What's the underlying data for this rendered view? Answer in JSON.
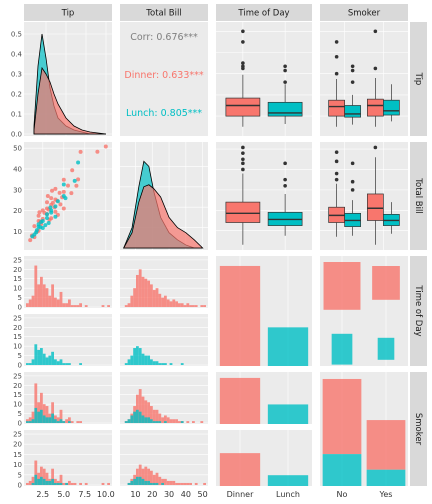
{
  "colors": {
    "panel_bg": "#ebebeb",
    "grid": "#ffffff",
    "strip_bg": "#d9d9d9",
    "dinner": "#f8766d",
    "lunch": "#00bfc4",
    "corr_text": "#7f7f7f"
  },
  "columns": [
    "Tip",
    "Total Bill",
    "Time of Day",
    "Smoker"
  ],
  "rows": [
    "Tip",
    "Total Bill",
    "Time of Day",
    "Smoker"
  ],
  "chart_data": {
    "type": "scatter",
    "layout": "pairs-matrix",
    "groups": [
      "Dinner",
      "Lunch"
    ],
    "correlations": {
      "overall": {
        "label": "Corr: 0.676***"
      },
      "by_group": [
        {
          "group": "Dinner",
          "label": "Dinner: 0.633***"
        },
        {
          "group": "Lunch",
          "label": "Lunch: 0.805***"
        }
      ]
    },
    "axes": {
      "tip_ticks": [
        "0.0",
        "0.1",
        "0.2",
        "0.3",
        "0.4",
        "0.5"
      ],
      "total_bill_ticks": [
        "10",
        "20",
        "30",
        "40",
        "50"
      ],
      "count_ticks": [
        "0",
        "5",
        "10",
        "15",
        "20",
        "25"
      ],
      "tip_x_ticks": [
        "2.5",
        "5.0",
        "7.5",
        "10.0"
      ],
      "total_bill_x_ticks": [
        "10",
        "20",
        "30",
        "40",
        "50"
      ],
      "time_categories": [
        "Dinner",
        "Lunch"
      ],
      "smoker_categories": [
        "No",
        "Yes"
      ]
    },
    "density_tip": {
      "x": [
        1.0,
        1.5,
        2.0,
        2.5,
        3.0,
        3.5,
        4.0,
        5.0,
        6.0,
        7.0,
        8.0,
        10.0
      ],
      "dinner": [
        0.02,
        0.2,
        0.33,
        0.3,
        0.26,
        0.2,
        0.15,
        0.08,
        0.04,
        0.02,
        0.01,
        0.0
      ],
      "lunch": [
        0.04,
        0.34,
        0.5,
        0.38,
        0.23,
        0.14,
        0.08,
        0.04,
        0.02,
        0.01,
        0.0,
        0.0
      ]
    },
    "density_total_bill": {
      "x": [
        3,
        8,
        12,
        15,
        18,
        21,
        25,
        30,
        35,
        40,
        45,
        50
      ],
      "dinner": [
        0.0,
        0.015,
        0.045,
        0.06,
        0.062,
        0.058,
        0.05,
        0.03,
        0.02,
        0.015,
        0.008,
        0.0
      ],
      "lunch": [
        0.0,
        0.02,
        0.06,
        0.085,
        0.08,
        0.055,
        0.03,
        0.015,
        0.008,
        0.003,
        0.0,
        0.0
      ]
    },
    "box_tip_by_time": [
      {
        "group": "Dinner",
        "min": 1.0,
        "q1": 2.0,
        "median": 3.0,
        "q3": 3.7,
        "max": 5.9,
        "outliers": [
          6.5,
          6.7,
          7.0,
          9.0,
          10.0
        ]
      },
      {
        "group": "Lunch",
        "min": 1.25,
        "q1": 2.0,
        "median": 2.3,
        "q3": 3.3,
        "max": 5.0,
        "outliers": [
          5.2,
          6.3,
          6.7
        ]
      }
    ],
    "box_tip_by_smoker": [
      {
        "smoker": "No",
        "group": "Dinner",
        "min": 1.0,
        "q1": 2.0,
        "median": 2.9,
        "q3": 3.5,
        "max": 5.5,
        "outliers": [
          6.0,
          7.6,
          9.0
        ]
      },
      {
        "smoker": "No",
        "group": "Lunch",
        "min": 1.2,
        "q1": 1.9,
        "median": 2.2,
        "q3": 3.0,
        "max": 4.0,
        "outliers": [
          5.2,
          6.3,
          6.7
        ]
      },
      {
        "smoker": "Yes",
        "group": "Dinner",
        "min": 1.0,
        "q1": 2.0,
        "median": 3.0,
        "q3": 3.6,
        "max": 5.6,
        "outliers": [
          6.5,
          10.0
        ]
      },
      {
        "smoker": "Yes",
        "group": "Lunch",
        "min": 1.5,
        "q1": 2.1,
        "median": 2.5,
        "q3": 3.5,
        "max": 5.0,
        "outliers": []
      }
    ],
    "box_bill_by_time": [
      {
        "group": "Dinner",
        "min": 3.1,
        "q1": 14.0,
        "median": 18.5,
        "q3": 24.0,
        "max": 38.0,
        "outliers": [
          40.0,
          43.0,
          45.0,
          48.0,
          50.8
        ]
      },
      {
        "group": "Lunch",
        "min": 7.5,
        "q1": 12.5,
        "median": 15.5,
        "q3": 19.0,
        "max": 28.0,
        "outliers": [
          32.0,
          35.0,
          43.0
        ]
      }
    ],
    "box_bill_by_smoker": [
      {
        "smoker": "No",
        "group": "Dinner",
        "min": 7.0,
        "q1": 14.0,
        "median": 17.5,
        "q3": 21.5,
        "max": 33.0,
        "outliers": [
          35.0,
          38.0,
          44.0,
          48.5
        ]
      },
      {
        "smoker": "No",
        "group": "Lunch",
        "min": 7.5,
        "q1": 12.0,
        "median": 15.0,
        "q3": 18.5,
        "max": 25.0,
        "outliers": [
          30.0,
          34.0,
          43.0
        ]
      },
      {
        "smoker": "Yes",
        "group": "Dinner",
        "min": 3.1,
        "q1": 15.0,
        "median": 21.0,
        "q3": 28.0,
        "max": 46.0,
        "outliers": [
          50.8
        ]
      },
      {
        "smoker": "Yes",
        "group": "Lunch",
        "min": 8.5,
        "q1": 12.5,
        "median": 15.0,
        "q3": 18.0,
        "max": 24.0,
        "outliers": []
      }
    ],
    "scatter_points": {
      "dinner": [
        [
          1.0,
          5.8
        ],
        [
          1.5,
          7.2
        ],
        [
          2.0,
          10.3
        ],
        [
          2.0,
          15.0
        ],
        [
          2.0,
          17.5
        ],
        [
          2.2,
          14.8
        ],
        [
          2.5,
          16.0
        ],
        [
          2.5,
          20.1
        ],
        [
          3.0,
          18.3
        ],
        [
          3.0,
          21.0
        ],
        [
          3.0,
          24.0
        ],
        [
          3.2,
          20.5
        ],
        [
          3.5,
          16.3
        ],
        [
          3.5,
          22.8
        ],
        [
          3.5,
          26.0
        ],
        [
          3.7,
          23.7
        ],
        [
          4.0,
          19.4
        ],
        [
          4.0,
          25.3
        ],
        [
          4.0,
          30.4
        ],
        [
          4.2,
          24.8
        ],
        [
          4.5,
          28.5
        ],
        [
          5.0,
          21.0
        ],
        [
          5.0,
          29.0
        ],
        [
          5.0,
          34.8
        ],
        [
          5.5,
          32.0
        ],
        [
          5.9,
          28.4
        ],
        [
          6.0,
          39.4
        ],
        [
          6.5,
          31.9
        ],
        [
          6.7,
          35.0
        ],
        [
          7.0,
          48.2
        ],
        [
          9.0,
          48.3
        ],
        [
          10.0,
          50.8
        ],
        [
          1.5,
          12.5
        ],
        [
          1.8,
          9.8
        ],
        [
          2.3,
          13.5
        ],
        [
          2.7,
          18.9
        ],
        [
          3.3,
          15.5
        ],
        [
          3.9,
          21.6
        ],
        [
          4.3,
          17.9
        ],
        [
          4.8,
          26.4
        ],
        [
          1.2,
          8.0
        ],
        [
          2.1,
          19.2
        ],
        [
          3.1,
          27.0
        ],
        [
          3.6,
          29.5
        ],
        [
          4.6,
          23.0
        ]
      ],
      "lunch": [
        [
          1.25,
          7.6
        ],
        [
          1.5,
          8.5
        ],
        [
          1.8,
          10.6
        ],
        [
          2.0,
          12.2
        ],
        [
          2.0,
          13.4
        ],
        [
          2.2,
          12.0
        ],
        [
          2.3,
          14.5
        ],
        [
          2.5,
          15.0
        ],
        [
          2.5,
          11.6
        ],
        [
          3.0,
          16.4
        ],
        [
          3.0,
          18.2
        ],
        [
          3.2,
          14.0
        ],
        [
          3.5,
          20.0
        ],
        [
          3.5,
          19.0
        ],
        [
          4.0,
          22.0
        ],
        [
          4.0,
          17.0
        ],
        [
          4.3,
          24.5
        ],
        [
          5.0,
          27.0
        ],
        [
          5.0,
          32.5
        ],
        [
          5.2,
          26.0
        ],
        [
          6.3,
          34.3
        ],
        [
          6.7,
          43.1
        ],
        [
          1.7,
          9.5
        ],
        [
          2.8,
          13.0
        ],
        [
          3.4,
          21.5
        ]
      ]
    },
    "hist_tip_dinner": [
      2,
      4,
      6,
      22,
      12,
      16,
      12,
      10,
      6,
      12,
      5,
      4,
      8,
      2,
      2,
      4,
      1,
      1,
      1,
      2,
      0,
      1,
      0,
      0,
      0,
      0,
      0,
      1,
      0,
      1
    ],
    "hist_tip_lunch": [
      1,
      1,
      3,
      11,
      8,
      9,
      6,
      4,
      5,
      7,
      3,
      2,
      3,
      1,
      1,
      1,
      0,
      0,
      0,
      1,
      0,
      0,
      0,
      0,
      0,
      0,
      0,
      0,
      0,
      0
    ],
    "hist_bill_dinner": [
      0,
      1,
      2,
      6,
      10,
      17,
      20,
      16,
      15,
      14,
      12,
      9,
      10,
      7,
      5,
      6,
      4,
      3,
      4,
      3,
      2,
      2,
      1,
      2,
      1,
      1,
      1,
      0,
      1,
      1
    ],
    "hist_bill_lunch": [
      0,
      1,
      3,
      5,
      9,
      10,
      9,
      6,
      5,
      5,
      3,
      2,
      2,
      1,
      1,
      1,
      0,
      1,
      0,
      0,
      0,
      1,
      0,
      0,
      0,
      0,
      0,
      0,
      0,
      0
    ],
    "hist_tip_smoker_no": [
      2,
      3,
      6,
      21,
      11,
      16,
      10,
      9,
      5,
      11,
      4,
      3,
      7,
      1,
      2,
      3,
      1,
      0,
      1,
      1,
      0,
      0,
      0,
      0,
      0,
      0,
      0,
      0,
      0,
      0
    ],
    "hist_tip_smoker_no_lunch": [
      1,
      1,
      2,
      8,
      6,
      7,
      4,
      3,
      3,
      5,
      2,
      1,
      2,
      1,
      0,
      1,
      0,
      0,
      0,
      0,
      0,
      0,
      0,
      0,
      0,
      0,
      0,
      0,
      0,
      0
    ],
    "hist_tip_smoker_yes": [
      1,
      2,
      4,
      12,
      6,
      9,
      8,
      6,
      3,
      8,
      3,
      2,
      5,
      1,
      1,
      2,
      1,
      1,
      0,
      1,
      0,
      1,
      0,
      0,
      0,
      0,
      0,
      1,
      0,
      1
    ],
    "hist_tip_smoker_yes_lunch": [
      0,
      0,
      1,
      5,
      3,
      4,
      3,
      2,
      2,
      3,
      1,
      1,
      1,
      0,
      1,
      0,
      0,
      0,
      0,
      0,
      0,
      0,
      0,
      0,
      0,
      0,
      0,
      0,
      0,
      0
    ],
    "hist_bill_smoker_no": [
      0,
      1,
      2,
      5,
      9,
      15,
      18,
      14,
      12,
      11,
      9,
      7,
      7,
      5,
      3,
      4,
      3,
      2,
      2,
      2,
      1,
      1,
      0,
      1,
      0,
      1,
      0,
      0,
      1,
      0
    ],
    "hist_bill_smoker_no_lunch": [
      0,
      1,
      2,
      4,
      6,
      7,
      6,
      4,
      3,
      3,
      2,
      1,
      1,
      1,
      0,
      1,
      0,
      0,
      0,
      0,
      0,
      1,
      0,
      0,
      0,
      0,
      0,
      0,
      0,
      0
    ],
    "hist_bill_smoker_yes": [
      0,
      0,
      1,
      3,
      5,
      8,
      10,
      8,
      9,
      8,
      7,
      5,
      6,
      4,
      3,
      3,
      2,
      2,
      2,
      1,
      1,
      1,
      1,
      1,
      1,
      0,
      1,
      0,
      0,
      1
    ],
    "hist_bill_smoker_yes_lunch": [
      0,
      0,
      1,
      2,
      3,
      4,
      4,
      3,
      2,
      2,
      1,
      1,
      1,
      0,
      1,
      0,
      0,
      0,
      0,
      0,
      0,
      0,
      0,
      0,
      0,
      0,
      0,
      0,
      0,
      0
    ],
    "time_counts": {
      "Dinner": 176,
      "Lunch": 68
    },
    "time_smoker_counts": {
      "Dinner": {
        "No": 106,
        "Yes": 70
      },
      "Lunch": {
        "No": 45,
        "Yes": 23
      }
    }
  }
}
